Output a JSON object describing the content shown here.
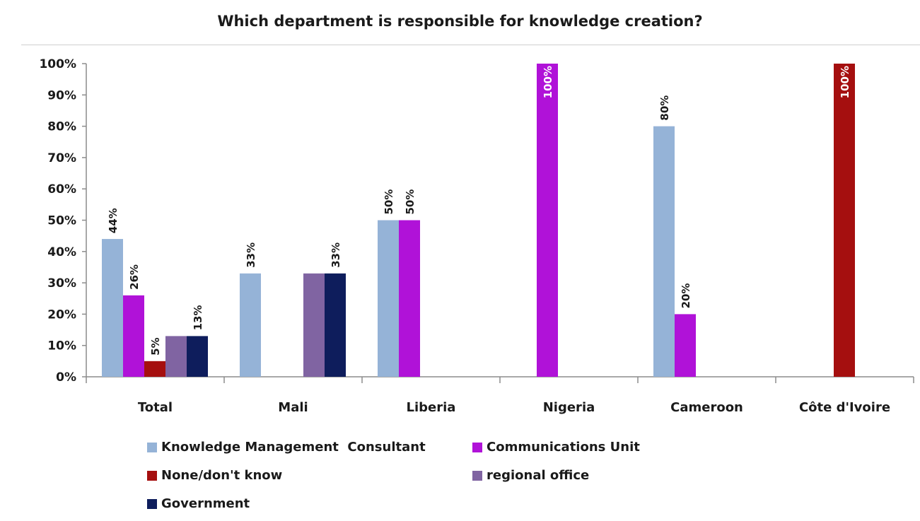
{
  "chart_data": {
    "type": "bar",
    "title": "Which department is responsible for knowledge creation?",
    "categories": [
      "Total",
      "Mali",
      "Liberia",
      "Nigeria",
      "Cameroon",
      "Côte d'Ivoire"
    ],
    "ylim": [
      0,
      100
    ],
    "yticks": [
      "0%",
      "10%",
      "20%",
      "30%",
      "40%",
      "50%",
      "60%",
      "70%",
      "80%",
      "90%",
      "100%"
    ],
    "grid": false,
    "legend_position": "bottom",
    "series": [
      {
        "name": "Knowledge Management  Consultant",
        "color": "#95b3d7",
        "values": [
          44,
          33,
          50,
          null,
          80,
          null
        ],
        "labels": [
          "44%",
          "33%",
          "50%",
          "",
          "80%",
          ""
        ]
      },
      {
        "name": "Communications Unit",
        "color": "#b012d8",
        "values": [
          26,
          null,
          50,
          100,
          20,
          null
        ],
        "labels": [
          "26%",
          "",
          "50%",
          "100%",
          "20%",
          ""
        ]
      },
      {
        "name": "None/don't know",
        "color": "#a50f0f",
        "values": [
          5,
          null,
          null,
          null,
          null,
          100
        ],
        "labels": [
          "5%",
          "",
          "",
          "",
          "",
          "100%"
        ]
      },
      {
        "name": "regional office",
        "color": "#8064a2",
        "values": [
          13,
          33,
          null,
          null,
          null,
          null
        ],
        "labels": [
          "",
          "",
          "",
          "",
          "",
          ""
        ]
      },
      {
        "name": "Government",
        "color": "#0e1d5c",
        "values": [
          13,
          33,
          null,
          null,
          null,
          null
        ],
        "labels": [
          "13%",
          "33%",
          "",
          "",
          "",
          ""
        ]
      }
    ]
  }
}
